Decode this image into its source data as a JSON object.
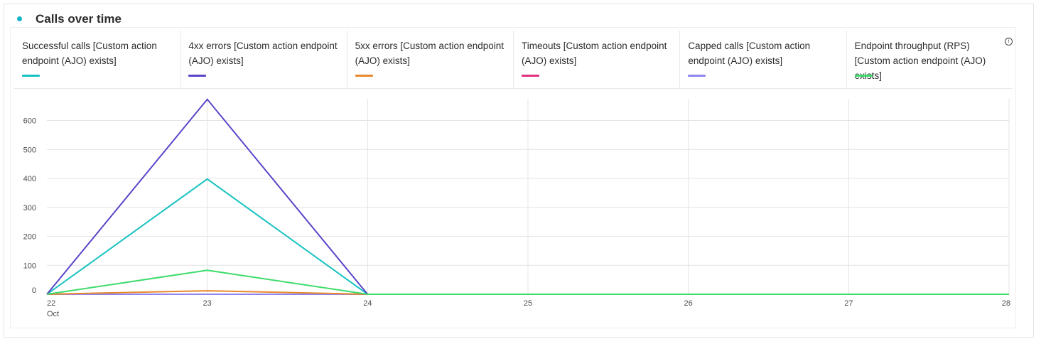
{
  "card": {
    "title": "Calls over time",
    "title_dot_color": "#14b5c8"
  },
  "legend": [
    {
      "label": "Successful calls [Custom action endpoint (AJO) exists]",
      "color": "#16c2c0"
    },
    {
      "label": "4xx errors [Custom action endpoint (AJO) exists]",
      "color": "#5a45c9"
    },
    {
      "label": "5xx errors [Custom action endpoint (AJO) exists]",
      "color": "#e8892b"
    },
    {
      "label": "Timeouts [Custom action endpoint (AJO) exists]",
      "color": "#e0317f"
    },
    {
      "label": "Capped calls [Custom action endpoint (AJO) exists]",
      "color": "#8f85f0"
    },
    {
      "label": "Endpoint throughput (RPS) [Custom action endpoint (AJO) exists]",
      "color": "#3ddc6c",
      "info_icon": "info-icon"
    }
  ],
  "chart_data": {
    "type": "line",
    "title": "Calls over time",
    "x": [
      "22",
      "23",
      "24",
      "25",
      "26",
      "27",
      "28"
    ],
    "x_sublabel": "Oct",
    "ylim": [
      0,
      675
    ],
    "yticks": [
      0,
      100,
      200,
      300,
      400,
      500,
      600
    ],
    "grid": true,
    "legend_position": "top",
    "series": [
      {
        "name": "Successful calls [Custom action endpoint (AJO) exists]",
        "color": "#16c2c0",
        "values": [
          0,
          398,
          0,
          0,
          0,
          0,
          0
        ]
      },
      {
        "name": "4xx errors [Custom action endpoint (AJO) exists]",
        "color": "#5a45c9",
        "values": [
          0,
          673,
          0,
          0,
          0,
          0,
          0
        ]
      },
      {
        "name": "5xx errors [Custom action endpoint (AJO) exists]",
        "color": "#e8892b",
        "values": [
          0,
          12,
          0,
          0,
          0,
          0,
          0
        ]
      },
      {
        "name": "Timeouts [Custom action endpoint (AJO) exists]",
        "color": "#e0317f",
        "values": [
          0,
          0,
          0,
          0,
          0,
          0,
          0
        ]
      },
      {
        "name": "Capped calls [Custom action endpoint (AJO) exists]",
        "color": "#8f85f0",
        "values": [
          0,
          0,
          0,
          0,
          0,
          0,
          0
        ]
      },
      {
        "name": "Endpoint throughput (RPS) [Custom action endpoint (AJO) exists]",
        "color": "#3ddc6c",
        "values": [
          0,
          83,
          0,
          0,
          0,
          0,
          0
        ]
      }
    ]
  }
}
